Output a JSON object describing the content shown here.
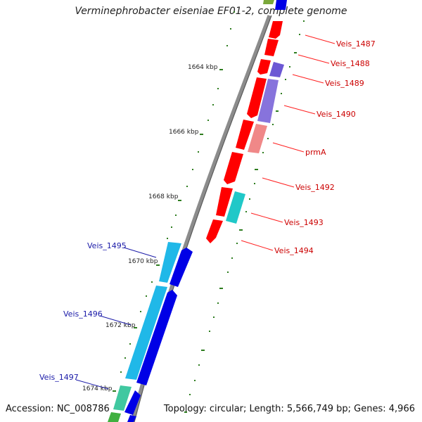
{
  "title": "Verminephrobacter eiseniae EF01-2, complete genome",
  "footer": {
    "accession": "Accession: NC_008786",
    "topology": "Topology: circular; Length: 5,566,749 bp; Genes: 4,966"
  },
  "colors": {
    "backbone": "#8c8c8c",
    "tick": "#2e7d1f",
    "forward_gene": "#ff0000",
    "forward_label": "#cc0000",
    "reverse_label": "#1a1aa8",
    "cds_blue": "#0000e6",
    "cds_cyan": "#20b8e8",
    "cds_purple": "#7a64d8",
    "cds_pink": "#f08888",
    "cds_teal": "#20c8c8",
    "cds_green": "#40b040"
  },
  "scale_labels": [
    "1664 kbp",
    "1666 kbp",
    "1668 kbp",
    "1670 kbp",
    "1672 kbp",
    "1674 kbp"
  ],
  "forward_gene_labels": [
    "Veis_1487",
    "Veis_1488",
    "Veis_1489",
    "Veis_1490",
    "prmA",
    "Veis_1492",
    "Veis_1493",
    "Veis_1494"
  ],
  "reverse_gene_labels": [
    "Veis_1495",
    "Veis_1496",
    "Veis_1497"
  ]
}
